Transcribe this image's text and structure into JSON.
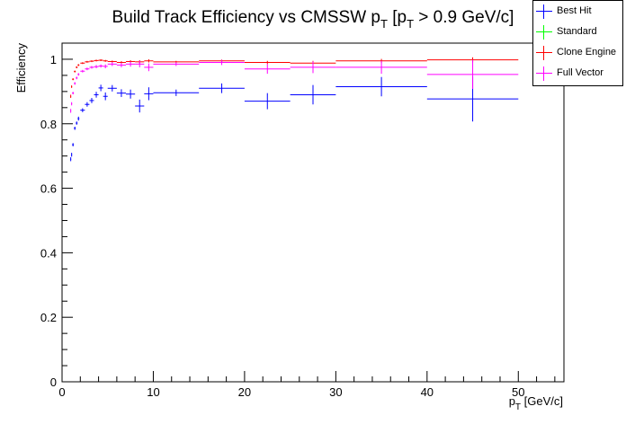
{
  "chart_data": {
    "type": "scatter",
    "title": "Build Track Efficiency vs CMSSW p",
    "title_sub_1": "T",
    "title_mid": " [p",
    "title_sub_2": "T",
    "title_end": " > 0.9 GeV/c]",
    "xlabel": "p",
    "xlabel_sub": "T",
    "xlabel_unit": " [GeV/c]",
    "ylabel": "Efficiency",
    "xlim": [
      0,
      55
    ],
    "ylim": [
      0,
      1.05
    ],
    "x_ticks": [
      0,
      10,
      20,
      30,
      40,
      50
    ],
    "x_tick_labels": [
      "0",
      "10",
      "20",
      "30",
      "40",
      "50"
    ],
    "y_ticks": [
      0,
      0.2,
      0.4,
      0.6,
      0.8,
      1
    ],
    "y_tick_labels": [
      "0",
      "0.2",
      "0.4",
      "0.6",
      "0.8",
      "1"
    ],
    "grid": false,
    "legend_position": "top-right",
    "series": [
      {
        "name": "Best Hit",
        "color": "#0000ff",
        "points": [
          {
            "x": 0.95,
            "xerr": 0.05,
            "y": 0.69,
            "yerr": 0.006
          },
          {
            "x": 1.05,
            "xerr": 0.05,
            "y": 0.704,
            "yerr": 0.006
          },
          {
            "x": 1.2,
            "xerr": 0.1,
            "y": 0.735,
            "yerr": 0.005
          },
          {
            "x": 1.4,
            "xerr": 0.1,
            "y": 0.786,
            "yerr": 0.005
          },
          {
            "x": 1.6,
            "xerr": 0.1,
            "y": 0.802,
            "yerr": 0.005
          },
          {
            "x": 1.8,
            "xerr": 0.1,
            "y": 0.816,
            "yerr": 0.006
          },
          {
            "x": 2.25,
            "xerr": 0.25,
            "y": 0.842,
            "yerr": 0.006
          },
          {
            "x": 2.75,
            "xerr": 0.25,
            "y": 0.86,
            "yerr": 0.007
          },
          {
            "x": 3.25,
            "xerr": 0.25,
            "y": 0.872,
            "yerr": 0.008
          },
          {
            "x": 3.75,
            "xerr": 0.25,
            "y": 0.89,
            "yerr": 0.009
          },
          {
            "x": 4.25,
            "xerr": 0.25,
            "y": 0.911,
            "yerr": 0.01
          },
          {
            "x": 4.75,
            "xerr": 0.25,
            "y": 0.885,
            "yerr": 0.012
          },
          {
            "x": 5.5,
            "xerr": 0.5,
            "y": 0.91,
            "yerr": 0.01
          },
          {
            "x": 6.5,
            "xerr": 0.5,
            "y": 0.895,
            "yerr": 0.012
          },
          {
            "x": 7.5,
            "xerr": 0.5,
            "y": 0.892,
            "yerr": 0.014
          },
          {
            "x": 8.5,
            "xerr": 0.5,
            "y": 0.855,
            "yerr": 0.02
          },
          {
            "x": 9.5,
            "xerr": 0.5,
            "y": 0.893,
            "yerr": 0.02
          },
          {
            "x": 12.5,
            "xerr": 2.5,
            "y": 0.896,
            "yerr": 0.01
          },
          {
            "x": 17.5,
            "xerr": 2.5,
            "y": 0.91,
            "yerr": 0.015
          },
          {
            "x": 22.5,
            "xerr": 2.5,
            "y": 0.87,
            "yerr": 0.025
          },
          {
            "x": 27.5,
            "xerr": 2.5,
            "y": 0.89,
            "yerr": 0.03
          },
          {
            "x": 35,
            "xerr": 5,
            "y": 0.915,
            "yerr": 0.03
          },
          {
            "x": 45,
            "xerr": 5,
            "y": 0.877,
            "yerr": 0.07
          }
        ]
      },
      {
        "name": "Standard",
        "color": "#00ff00",
        "points": []
      },
      {
        "name": "Clone Engine",
        "color": "#ff0000",
        "points": [
          {
            "x": 0.95,
            "xerr": 0.05,
            "y": 0.885,
            "yerr": 0.005
          },
          {
            "x": 1.05,
            "xerr": 0.05,
            "y": 0.915,
            "yerr": 0.004
          },
          {
            "x": 1.2,
            "xerr": 0.1,
            "y": 0.938,
            "yerr": 0.003
          },
          {
            "x": 1.4,
            "xerr": 0.1,
            "y": 0.962,
            "yerr": 0.003
          },
          {
            "x": 1.6,
            "xerr": 0.1,
            "y": 0.975,
            "yerr": 0.003
          },
          {
            "x": 1.8,
            "xerr": 0.1,
            "y": 0.982,
            "yerr": 0.003
          },
          {
            "x": 2.25,
            "xerr": 0.25,
            "y": 0.988,
            "yerr": 0.002
          },
          {
            "x": 2.75,
            "xerr": 0.25,
            "y": 0.992,
            "yerr": 0.002
          },
          {
            "x": 3.25,
            "xerr": 0.25,
            "y": 0.994,
            "yerr": 0.002
          },
          {
            "x": 3.75,
            "xerr": 0.25,
            "y": 0.996,
            "yerr": 0.002
          },
          {
            "x": 4.25,
            "xerr": 0.25,
            "y": 0.997,
            "yerr": 0.002
          },
          {
            "x": 4.75,
            "xerr": 0.25,
            "y": 0.995,
            "yerr": 0.003
          },
          {
            "x": 5.5,
            "xerr": 0.5,
            "y": 0.993,
            "yerr": 0.003
          },
          {
            "x": 6.5,
            "xerr": 0.5,
            "y": 0.99,
            "yerr": 0.004
          },
          {
            "x": 7.5,
            "xerr": 0.5,
            "y": 0.993,
            "yerr": 0.004
          },
          {
            "x": 8.5,
            "xerr": 0.5,
            "y": 0.992,
            "yerr": 0.005
          },
          {
            "x": 9.5,
            "xerr": 0.5,
            "y": 0.995,
            "yerr": 0.005
          },
          {
            "x": 12.5,
            "xerr": 2.5,
            "y": 0.992,
            "yerr": 0.003
          },
          {
            "x": 17.5,
            "xerr": 2.5,
            "y": 0.995,
            "yerr": 0.004
          },
          {
            "x": 22.5,
            "xerr": 2.5,
            "y": 0.99,
            "yerr": 0.005
          },
          {
            "x": 27.5,
            "xerr": 2.5,
            "y": 0.988,
            "yerr": 0.007
          },
          {
            "x": 35,
            "xerr": 5,
            "y": 0.995,
            "yerr": 0.006
          },
          {
            "x": 45,
            "xerr": 5,
            "y": 0.998,
            "yerr": 0.008
          }
        ]
      },
      {
        "name": "Full Vector",
        "color": "#ff00ff",
        "points": [
          {
            "x": 0.95,
            "xerr": 0.05,
            "y": 0.84,
            "yerr": 0.006
          },
          {
            "x": 1.05,
            "xerr": 0.05,
            "y": 0.862,
            "yerr": 0.005
          },
          {
            "x": 1.2,
            "xerr": 0.1,
            "y": 0.895,
            "yerr": 0.004
          },
          {
            "x": 1.4,
            "xerr": 0.1,
            "y": 0.925,
            "yerr": 0.004
          },
          {
            "x": 1.6,
            "xerr": 0.1,
            "y": 0.942,
            "yerr": 0.004
          },
          {
            "x": 1.8,
            "xerr": 0.1,
            "y": 0.953,
            "yerr": 0.004
          },
          {
            "x": 2.25,
            "xerr": 0.25,
            "y": 0.963,
            "yerr": 0.004
          },
          {
            "x": 2.75,
            "xerr": 0.25,
            "y": 0.97,
            "yerr": 0.004
          },
          {
            "x": 3.25,
            "xerr": 0.25,
            "y": 0.975,
            "yerr": 0.004
          },
          {
            "x": 3.75,
            "xerr": 0.25,
            "y": 0.977,
            "yerr": 0.005
          },
          {
            "x": 4.25,
            "xerr": 0.25,
            "y": 0.979,
            "yerr": 0.005
          },
          {
            "x": 4.75,
            "xerr": 0.25,
            "y": 0.978,
            "yerr": 0.006
          },
          {
            "x": 5.5,
            "xerr": 0.5,
            "y": 0.985,
            "yerr": 0.006
          },
          {
            "x": 6.5,
            "xerr": 0.5,
            "y": 0.982,
            "yerr": 0.007
          },
          {
            "x": 7.5,
            "xerr": 0.5,
            "y": 0.985,
            "yerr": 0.008
          },
          {
            "x": 8.5,
            "xerr": 0.5,
            "y": 0.985,
            "yerr": 0.01
          },
          {
            "x": 9.5,
            "xerr": 0.5,
            "y": 0.975,
            "yerr": 0.012
          },
          {
            "x": 12.5,
            "xerr": 2.5,
            "y": 0.985,
            "yerr": 0.006
          },
          {
            "x": 17.5,
            "xerr": 2.5,
            "y": 0.99,
            "yerr": 0.008
          },
          {
            "x": 22.5,
            "xerr": 2.5,
            "y": 0.97,
            "yerr": 0.015
          },
          {
            "x": 27.5,
            "xerr": 2.5,
            "y": 0.975,
            "yerr": 0.018
          },
          {
            "x": 35,
            "xerr": 5,
            "y": 0.975,
            "yerr": 0.02
          },
          {
            "x": 45,
            "xerr": 5,
            "y": 0.953,
            "yerr": 0.045
          }
        ]
      }
    ]
  }
}
